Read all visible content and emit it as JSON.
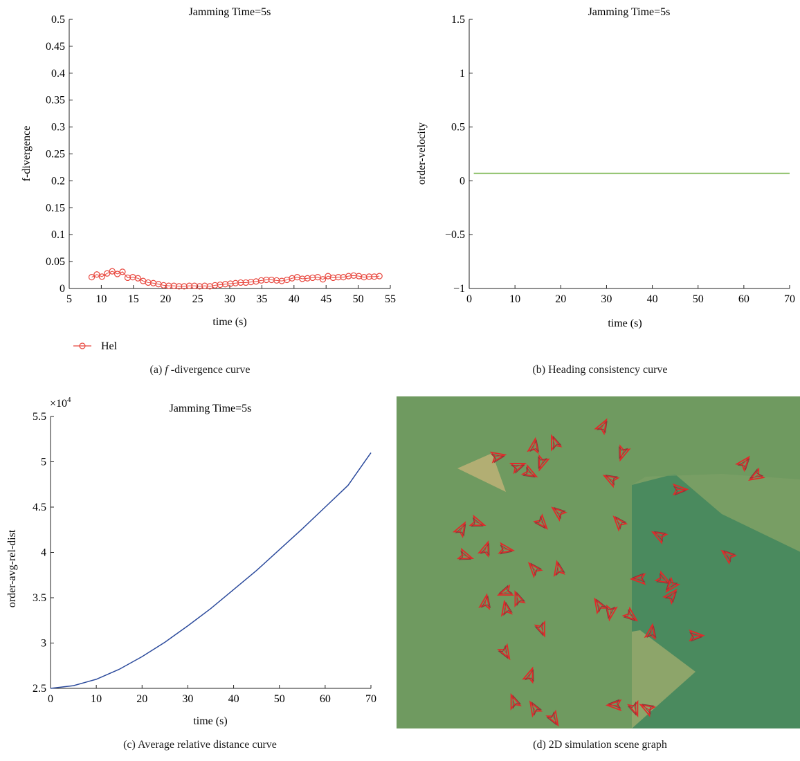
{
  "chart_data": [
    {
      "id": "a",
      "type": "scatter",
      "title": "Jamming Time=5s",
      "xlabel": "time (s)",
      "ylabel": "f-divergence",
      "xlim": [
        5,
        55
      ],
      "ylim": [
        0,
        0.5
      ],
      "xticks": [
        "5",
        "10",
        "15",
        "20",
        "25",
        "30",
        "35",
        "40",
        "45",
        "50",
        "55"
      ],
      "yticks": [
        "0",
        "0.05",
        "0.1",
        "0.15",
        "0.2",
        "0.25",
        "0.3",
        "0.35",
        "0.4",
        "0.45",
        "0.5"
      ],
      "legend": "bottom-left",
      "color": "#e8453c",
      "series": [
        {
          "name": "Hel",
          "x": [
            8.5,
            9.3,
            10.1,
            10.9,
            11.7,
            12.5,
            13.3,
            14.1,
            14.9,
            15.7,
            16.5,
            17.3,
            18.1,
            18.9,
            19.7,
            20.5,
            21.3,
            22.1,
            22.9,
            23.7,
            24.5,
            25.3,
            26.1,
            26.9,
            27.7,
            28.5,
            29.3,
            30.1,
            30.9,
            31.7,
            32.5,
            33.3,
            34.1,
            34.9,
            35.7,
            36.5,
            37.3,
            38.1,
            38.9,
            39.7,
            40.5,
            41.3,
            42.1,
            42.9,
            43.7,
            44.5,
            45.3,
            46.1,
            46.9,
            47.7,
            48.5,
            49.3,
            50.1,
            50.9,
            51.7,
            52.5,
            53.3
          ],
          "y": [
            0.021,
            0.026,
            0.022,
            0.028,
            0.032,
            0.027,
            0.031,
            0.02,
            0.021,
            0.019,
            0.014,
            0.011,
            0.01,
            0.008,
            0.006,
            0.005,
            0.005,
            0.004,
            0.004,
            0.005,
            0.005,
            0.004,
            0.005,
            0.004,
            0.006,
            0.007,
            0.008,
            0.009,
            0.01,
            0.011,
            0.011,
            0.012,
            0.013,
            0.015,
            0.016,
            0.016,
            0.015,
            0.014,
            0.016,
            0.019,
            0.021,
            0.018,
            0.019,
            0.02,
            0.021,
            0.017,
            0.023,
            0.02,
            0.021,
            0.021,
            0.023,
            0.024,
            0.023,
            0.021,
            0.022,
            0.022,
            0.023
          ]
        }
      ]
    },
    {
      "id": "b",
      "type": "line",
      "title": "Jamming Time=5s",
      "xlabel": "time (s)",
      "ylabel": "order-velocity",
      "xlim": [
        0,
        70
      ],
      "ylim": [
        -1,
        1.5
      ],
      "xticks": [
        "0",
        "10",
        "20",
        "30",
        "40",
        "50",
        "60",
        "70"
      ],
      "yticks": [
        "−1",
        "−0.5",
        "0",
        "0.5",
        "1",
        "1.5"
      ],
      "color": "#7ab650",
      "series": [
        {
          "x": [
            1,
            70
          ],
          "y": [
            0.07,
            0.07
          ]
        }
      ]
    },
    {
      "id": "c",
      "type": "line",
      "title": "Jamming Time=5s",
      "xlabel": "time (s)",
      "ylabel": "order-avg-rel-dist",
      "xlim": [
        0,
        70
      ],
      "ylim": [
        2.5,
        5.5
      ],
      "y_multiplier": "×10",
      "y_multiplier_exp": "4",
      "xticks": [
        "0",
        "10",
        "20",
        "30",
        "40",
        "50",
        "60",
        "70"
      ],
      "yticks": [
        "2.5",
        "3",
        "3.5",
        "4",
        "4.5",
        "5",
        "5.5"
      ],
      "color": "#2b4a9c",
      "series": [
        {
          "x": [
            0,
            5,
            10,
            15,
            20,
            25,
            30,
            35,
            40,
            45,
            50,
            55,
            60,
            65,
            70
          ],
          "y": [
            2.5,
            2.53,
            2.6,
            2.71,
            2.85,
            3.01,
            3.19,
            3.38,
            3.59,
            3.8,
            4.03,
            4.26,
            4.5,
            4.74,
            5.1
          ]
        }
      ]
    }
  ],
  "scene": {
    "background": "#6f9a60",
    "dark_region": "#4a8a5e",
    "light_region": "#8da56a",
    "triangle_color": "#b2ae73",
    "agent_color": "#e02a2a",
    "agents": [
      [
        0.51,
        0.09,
        30
      ],
      [
        0.34,
        0.15,
        10
      ],
      [
        0.39,
        0.14,
        -20
      ],
      [
        0.56,
        0.17,
        200
      ],
      [
        0.25,
        0.18,
        80
      ],
      [
        0.33,
        0.23,
        120
      ],
      [
        0.3,
        0.21,
        70
      ],
      [
        0.36,
        0.2,
        200
      ],
      [
        0.53,
        0.25,
        -60
      ],
      [
        0.86,
        0.2,
        40
      ],
      [
        0.89,
        0.24,
        -120
      ],
      [
        0.16,
        0.4,
        30
      ],
      [
        0.7,
        0.28,
        90
      ],
      [
        0.4,
        0.35,
        -50
      ],
      [
        0.36,
        0.38,
        140
      ],
      [
        0.55,
        0.38,
        -40
      ],
      [
        0.2,
        0.38,
        110
      ],
      [
        0.65,
        0.42,
        -60
      ],
      [
        0.22,
        0.46,
        20
      ],
      [
        0.27,
        0.46,
        100
      ],
      [
        0.17,
        0.48,
        110
      ],
      [
        0.82,
        0.48,
        -50
      ],
      [
        0.34,
        0.52,
        -40
      ],
      [
        0.4,
        0.52,
        -10
      ],
      [
        0.66,
        0.55,
        120
      ],
      [
        0.68,
        0.57,
        -140
      ],
      [
        0.6,
        0.55,
        -90
      ],
      [
        0.68,
        0.6,
        40
      ],
      [
        0.27,
        0.59,
        -110
      ],
      [
        0.3,
        0.61,
        -20
      ],
      [
        0.22,
        0.62,
        10
      ],
      [
        0.27,
        0.64,
        -10
      ],
      [
        0.5,
        0.63,
        -30
      ],
      [
        0.53,
        0.65,
        190
      ],
      [
        0.58,
        0.66,
        130
      ],
      [
        0.36,
        0.7,
        160
      ],
      [
        0.63,
        0.71,
        10
      ],
      [
        0.74,
        0.72,
        90
      ],
      [
        0.27,
        0.77,
        150
      ],
      [
        0.33,
        0.84,
        20
      ],
      [
        0.29,
        0.92,
        -20
      ],
      [
        0.34,
        0.94,
        -30
      ],
      [
        0.39,
        0.97,
        150
      ],
      [
        0.54,
        0.93,
        -90
      ],
      [
        0.59,
        0.94,
        160
      ],
      [
        0.62,
        0.94,
        -60
      ]
    ]
  },
  "captions": {
    "a_prefix": "(a)  ",
    "a_italic": "f",
    "a_suffix": " -divergence curve",
    "b": "(b)  Heading consistency curve",
    "c": "(c)  Average relative distance curve",
    "d": "(d)  2D simulation scene graph"
  }
}
